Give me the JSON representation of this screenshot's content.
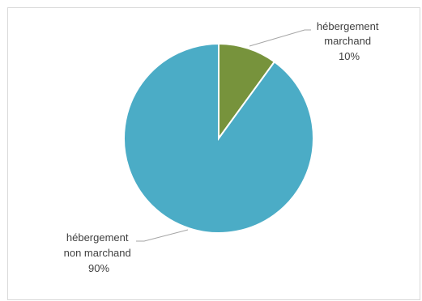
{
  "chart_data": {
    "type": "pie",
    "title": "",
    "slices": [
      {
        "label_lines": [
          "hébergement",
          "marchand"
        ],
        "value": 10,
        "value_label": "10%",
        "color": "#77933c"
      },
      {
        "label_lines": [
          "hébergement",
          "non marchand"
        ],
        "value": 90,
        "value_label": "90%",
        "color": "#4bacc6"
      }
    ],
    "legend": "none",
    "data_labels": "outside with leader lines"
  }
}
